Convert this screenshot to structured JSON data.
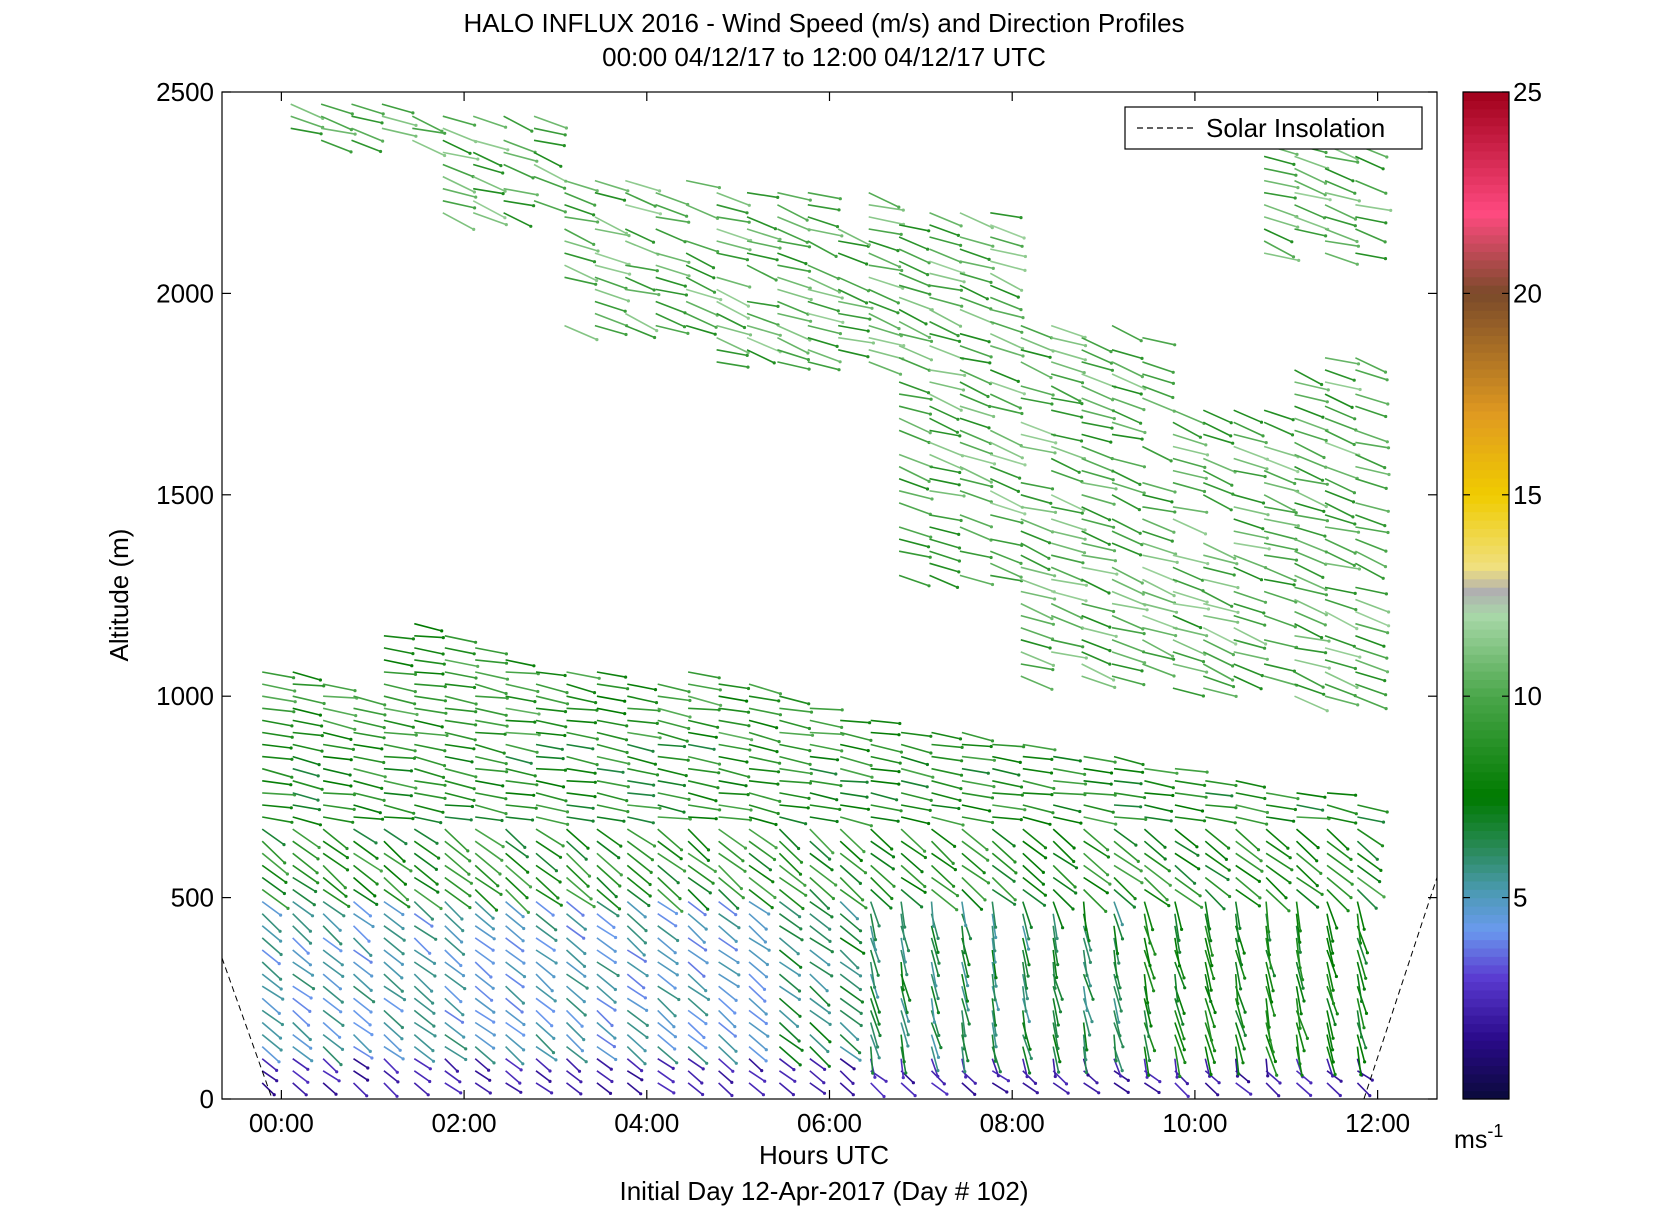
{
  "chart_data": {
    "type": "wind_barb_profile",
    "title": "HALO INFLUX 2016 - Wind Speed (m/s) and Direction Profiles",
    "subtitle": "00:00 04/12/17 to 12:00 04/12/17  UTC",
    "xlabel": "Hours UTC",
    "xlabel_secondary": "Initial Day 12-Apr-2017 (Day # 102)",
    "ylabel": "Altitude (m)",
    "xlim_hours": [
      -0.65,
      12.65
    ],
    "ylim": [
      0,
      2500
    ],
    "x_ticks": [
      {
        "value": 0,
        "label": "00:00"
      },
      {
        "value": 2,
        "label": "02:00"
      },
      {
        "value": 4,
        "label": "04:00"
      },
      {
        "value": 6,
        "label": "06:00"
      },
      {
        "value": 8,
        "label": "08:00"
      },
      {
        "value": 10,
        "label": "10:00"
      },
      {
        "value": 12,
        "label": "12:00"
      }
    ],
    "y_ticks": [
      {
        "value": 0,
        "label": "0"
      },
      {
        "value": 500,
        "label": "500"
      },
      {
        "value": 1000,
        "label": "1000"
      },
      {
        "value": 1500,
        "label": "1500"
      },
      {
        "value": 2000,
        "label": "2000"
      },
      {
        "value": 2500,
        "label": "2500"
      }
    ],
    "legend": {
      "entries": [
        {
          "label": "Solar Insolation",
          "style": "dashed",
          "color": "#000000"
        }
      ],
      "placement": "top-right"
    },
    "colorbar": {
      "range": [
        0,
        25
      ],
      "unit_label": "ms",
      "unit_exponent": "-1",
      "ticks": [
        {
          "value": 5,
          "label": "5"
        },
        {
          "value": 10,
          "label": "10"
        },
        {
          "value": 15,
          "label": "15"
        },
        {
          "value": 20,
          "label": "20"
        },
        {
          "value": 25,
          "label": "25"
        }
      ],
      "colormap": [
        {
          "v": 0,
          "c": "#0a0a3a"
        },
        {
          "v": 1.5,
          "c": "#2a0a8a"
        },
        {
          "v": 3,
          "c": "#5a3ad0"
        },
        {
          "v": 4.2,
          "c": "#6a9aee"
        },
        {
          "v": 5.2,
          "c": "#4a9ab0"
        },
        {
          "v": 6.2,
          "c": "#2a8a5a"
        },
        {
          "v": 7.5,
          "c": "#007a00"
        },
        {
          "v": 10,
          "c": "#4aa64a"
        },
        {
          "v": 12,
          "c": "#a8d8a8"
        },
        {
          "v": 12.6,
          "c": "#b0b0b0"
        },
        {
          "v": 13.2,
          "c": "#f0e080"
        },
        {
          "v": 15,
          "c": "#f0cc00"
        },
        {
          "v": 17,
          "c": "#e09a20"
        },
        {
          "v": 20,
          "c": "#7a4a2a"
        },
        {
          "v": 22,
          "c": "#ff4a80"
        },
        {
          "v": 25,
          "c": "#a0001a"
        }
      ]
    },
    "solar_insolation": {
      "points": [
        [
          -0.65,
          350
        ],
        [
          -0.1,
          0
        ]
      ],
      "points_end": [
        [
          11.85,
          0
        ],
        [
          12.65,
          550
        ]
      ]
    },
    "wind_profiles": {
      "time_start": -0.1,
      "time_step": 0.333,
      "time_count": 37,
      "alt_step": 30,
      "low_layer_top": [
        1060,
        1070,
        1040,
        1020,
        1160,
        1180,
        1150,
        1130,
        1100,
        1080,
        1060,
        1060,
        1050,
        1040,
        1060,
        1030,
        1030,
        1000,
        990,
        950,
        950,
        930,
        930,
        910,
        900,
        880,
        870,
        860,
        850,
        830,
        820,
        800,
        800,
        780,
        760,
        760,
        740
      ],
      "low_layer_bottom": 40,
      "upper_layer": [
        {
          "from": 1,
          "to": 5,
          "bottom": 2380,
          "top": 2480
        },
        {
          "from": 6,
          "to": 9,
          "bottom": 2200,
          "top": 2460
        },
        {
          "from": 10,
          "to": 14,
          "bottom": 1920,
          "top": 2300
        },
        {
          "from": 15,
          "to": 20,
          "bottom": 1830,
          "top": 2250
        },
        {
          "from": 21,
          "to": 24,
          "bottom": 1300,
          "top": 2200
        },
        {
          "from": 25,
          "to": 29,
          "bottom": 1050,
          "top": 1940
        },
        {
          "from": 30,
          "to": 33,
          "bottom": 1020,
          "top": 1720
        },
        {
          "from": 34,
          "to": 36,
          "bottom": 1000,
          "top": 1860
        },
        {
          "from": 33,
          "to": 36,
          "bottom": 2100,
          "top": 2480
        }
      ]
    }
  }
}
